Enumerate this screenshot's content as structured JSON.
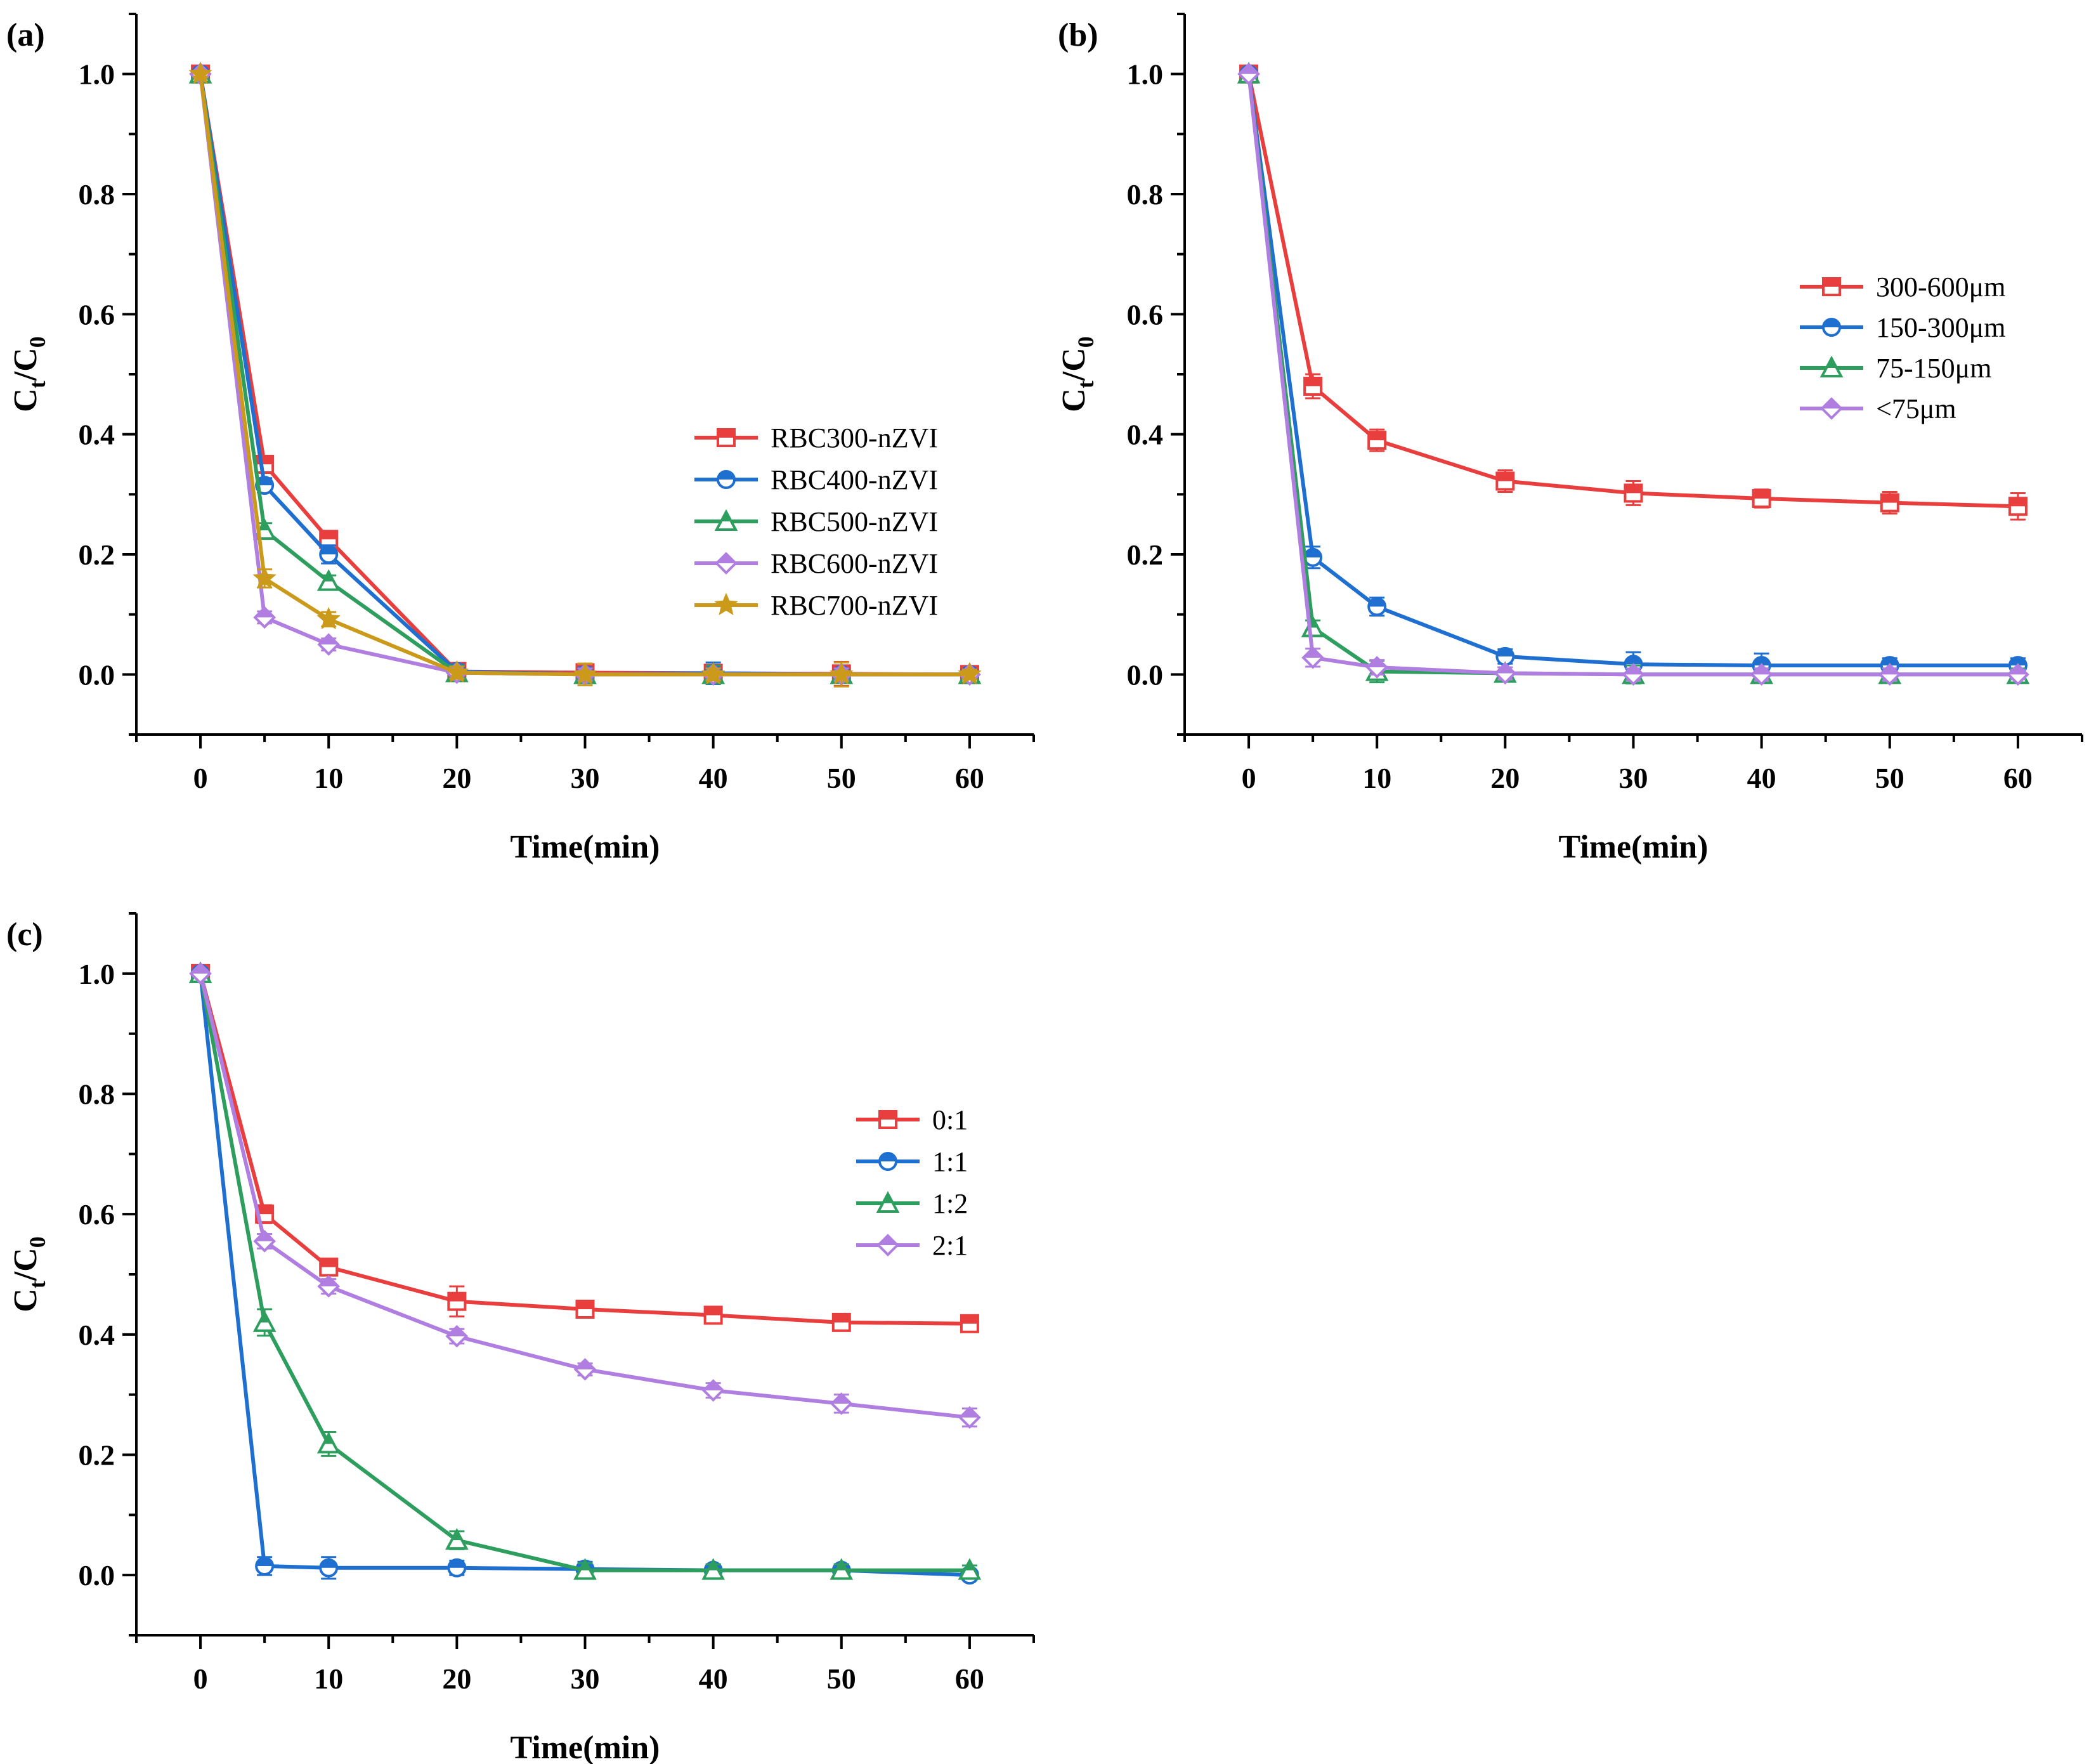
{
  "chart_data": [
    {
      "type": "line",
      "panel_label": "(a)",
      "xlabel": "Time(min)",
      "ylabel": {
        "main": "C",
        "sub1": "t",
        "sep": "/C",
        "sub2": "0"
      },
      "xlim": [
        -5,
        65
      ],
      "ylim": [
        -0.1,
        1.1
      ],
      "xticks": [
        0,
        10,
        20,
        30,
        40,
        50,
        60
      ],
      "xtick_labels": [
        "0",
        "10",
        "20",
        "30",
        "40",
        "50",
        "60"
      ],
      "yticks": [
        0.0,
        0.2,
        0.4,
        0.6,
        0.8,
        1.0
      ],
      "ytick_labels": [
        "0.0",
        "0.2",
        "0.4",
        "0.6",
        "0.8",
        "1.0"
      ],
      "legend_position": "center-right",
      "x": [
        0,
        5,
        10,
        20,
        30,
        40,
        50,
        60
      ],
      "series": [
        {
          "name": "RBC300-nZVI",
          "color": "#e83e3e",
          "marker": "square",
          "values": [
            1.0,
            0.35,
            0.225,
            0.005,
            0.003,
            0.002,
            0.001,
            0.0
          ],
          "errors": [
            0.005,
            0.012,
            0.012,
            0.01,
            0.015,
            0.01,
            0.02,
            0.008
          ]
        },
        {
          "name": "RBC400-nZVI",
          "color": "#1f6fd1",
          "marker": "circle",
          "values": [
            1.0,
            0.315,
            0.2,
            0.005,
            0.0,
            0.002,
            0.0,
            0.0
          ],
          "errors": [
            0.005,
            0.012,
            0.015,
            0.012,
            0.012,
            0.018,
            0.01,
            0.008
          ]
        },
        {
          "name": "RBC500-nZVI",
          "color": "#2e9e5e",
          "marker": "triangle",
          "values": [
            1.0,
            0.24,
            0.155,
            0.003,
            0.0,
            0.0,
            0.0,
            0.0
          ],
          "errors": [
            0.005,
            0.012,
            0.01,
            0.012,
            0.01,
            0.015,
            0.01,
            0.008
          ]
        },
        {
          "name": "RBC600-nZVI",
          "color": "#b07ee0",
          "marker": "diamond",
          "values": [
            1.0,
            0.095,
            0.05,
            0.003,
            0.0,
            0.0,
            0.0,
            0.0
          ],
          "errors": [
            0.005,
            0.01,
            0.01,
            0.01,
            0.01,
            0.01,
            0.01,
            0.008
          ]
        },
        {
          "name": "RBC700-nZVI",
          "color": "#cc9a1a",
          "marker": "star",
          "values": [
            1.0,
            0.16,
            0.092,
            0.003,
            0.0,
            0.0,
            0.0,
            0.0
          ],
          "errors": [
            0.005,
            0.015,
            0.012,
            0.01,
            0.018,
            0.01,
            0.02,
            0.008
          ]
        }
      ]
    },
    {
      "type": "line",
      "panel_label": "(b)",
      "xlabel": "Time(min)",
      "ylabel": {
        "main": "C",
        "sub1": "t",
        "sep": "/C",
        "sub2": "0"
      },
      "xlim": [
        -5,
        65
      ],
      "ylim": [
        -0.1,
        1.1
      ],
      "xticks": [
        0,
        10,
        20,
        30,
        40,
        50,
        60
      ],
      "xtick_labels": [
        "0",
        "10",
        "20",
        "30",
        "40",
        "50",
        "60"
      ],
      "yticks": [
        0.0,
        0.2,
        0.4,
        0.6,
        0.8,
        1.0
      ],
      "ytick_labels": [
        "0.0",
        "0.2",
        "0.4",
        "0.6",
        "0.8",
        "1.0"
      ],
      "legend_position": "upper-right",
      "x": [
        0,
        5,
        10,
        20,
        30,
        40,
        50,
        60
      ],
      "series": [
        {
          "name": "300-600μm",
          "color": "#e83e3e",
          "marker": "square",
          "values": [
            1.0,
            0.48,
            0.39,
            0.322,
            0.302,
            0.293,
            0.286,
            0.28
          ],
          "errors": [
            0.005,
            0.02,
            0.018,
            0.018,
            0.02,
            0.015,
            0.018,
            0.022
          ]
        },
        {
          "name": "150-300μm",
          "color": "#1f6fd1",
          "marker": "circle",
          "values": [
            1.0,
            0.195,
            0.113,
            0.03,
            0.017,
            0.015,
            0.015,
            0.015
          ],
          "errors": [
            0.005,
            0.018,
            0.015,
            0.012,
            0.02,
            0.02,
            0.012,
            0.012
          ]
        },
        {
          "name": "75-150μm",
          "color": "#2e9e5e",
          "marker": "triangle",
          "values": [
            1.0,
            0.078,
            0.005,
            0.002,
            0.0,
            0.0,
            0.0,
            0.0
          ],
          "errors": [
            0.005,
            0.012,
            0.018,
            0.01,
            0.015,
            0.01,
            0.01,
            0.01
          ]
        },
        {
          "name": "<75μm",
          "color": "#b07ee0",
          "marker": "diamond",
          "values": [
            1.0,
            0.028,
            0.012,
            0.002,
            0.0,
            0.0,
            0.0,
            0.0
          ],
          "errors": [
            0.005,
            0.015,
            0.012,
            0.01,
            0.01,
            0.01,
            0.01,
            0.008
          ]
        }
      ]
    },
    {
      "type": "line",
      "panel_label": "(c)",
      "xlabel": "Time(min)",
      "ylabel": {
        "main": "C",
        "sub1": "t",
        "sep": "/C",
        "sub2": "0"
      },
      "xlim": [
        -5,
        65
      ],
      "ylim": [
        -0.1,
        1.1
      ],
      "xticks": [
        0,
        10,
        20,
        30,
        40,
        50,
        60
      ],
      "xtick_labels": [
        "0",
        "10",
        "20",
        "30",
        "40",
        "50",
        "60"
      ],
      "yticks": [
        0.0,
        0.2,
        0.4,
        0.6,
        0.8,
        1.0
      ],
      "ytick_labels": [
        "0.0",
        "0.2",
        "0.4",
        "0.6",
        "0.8",
        "1.0"
      ],
      "legend_position": "upper-right",
      "x": [
        0,
        5,
        10,
        20,
        30,
        40,
        50,
        60
      ],
      "series": [
        {
          "name": "0:1",
          "color": "#e83e3e",
          "marker": "square",
          "values": [
            1.0,
            0.6,
            0.512,
            0.455,
            0.442,
            0.432,
            0.42,
            0.418
          ],
          "errors": [
            0.005,
            0.015,
            0.01,
            0.025,
            0.01,
            0.01,
            0.012,
            0.012
          ]
        },
        {
          "name": "1:1",
          "color": "#1f6fd1",
          "marker": "circle",
          "values": [
            1.0,
            0.015,
            0.012,
            0.012,
            0.01,
            0.008,
            0.008,
            0.0
          ],
          "errors": [
            0.005,
            0.015,
            0.018,
            0.012,
            0.012,
            0.01,
            0.01,
            0.008
          ]
        },
        {
          "name": "1:2",
          "color": "#2e9e5e",
          "marker": "triangle",
          "values": [
            1.0,
            0.42,
            0.218,
            0.058,
            0.008,
            0.008,
            0.008,
            0.008
          ],
          "errors": [
            0.005,
            0.022,
            0.02,
            0.015,
            0.012,
            0.01,
            0.01,
            0.008
          ]
        },
        {
          "name": "2:1",
          "color": "#b07ee0",
          "marker": "diamond",
          "values": [
            1.0,
            0.555,
            0.48,
            0.397,
            0.342,
            0.307,
            0.285,
            0.262
          ],
          "errors": [
            0.005,
            0.012,
            0.012,
            0.012,
            0.01,
            0.012,
            0.015,
            0.015
          ]
        }
      ]
    }
  ]
}
